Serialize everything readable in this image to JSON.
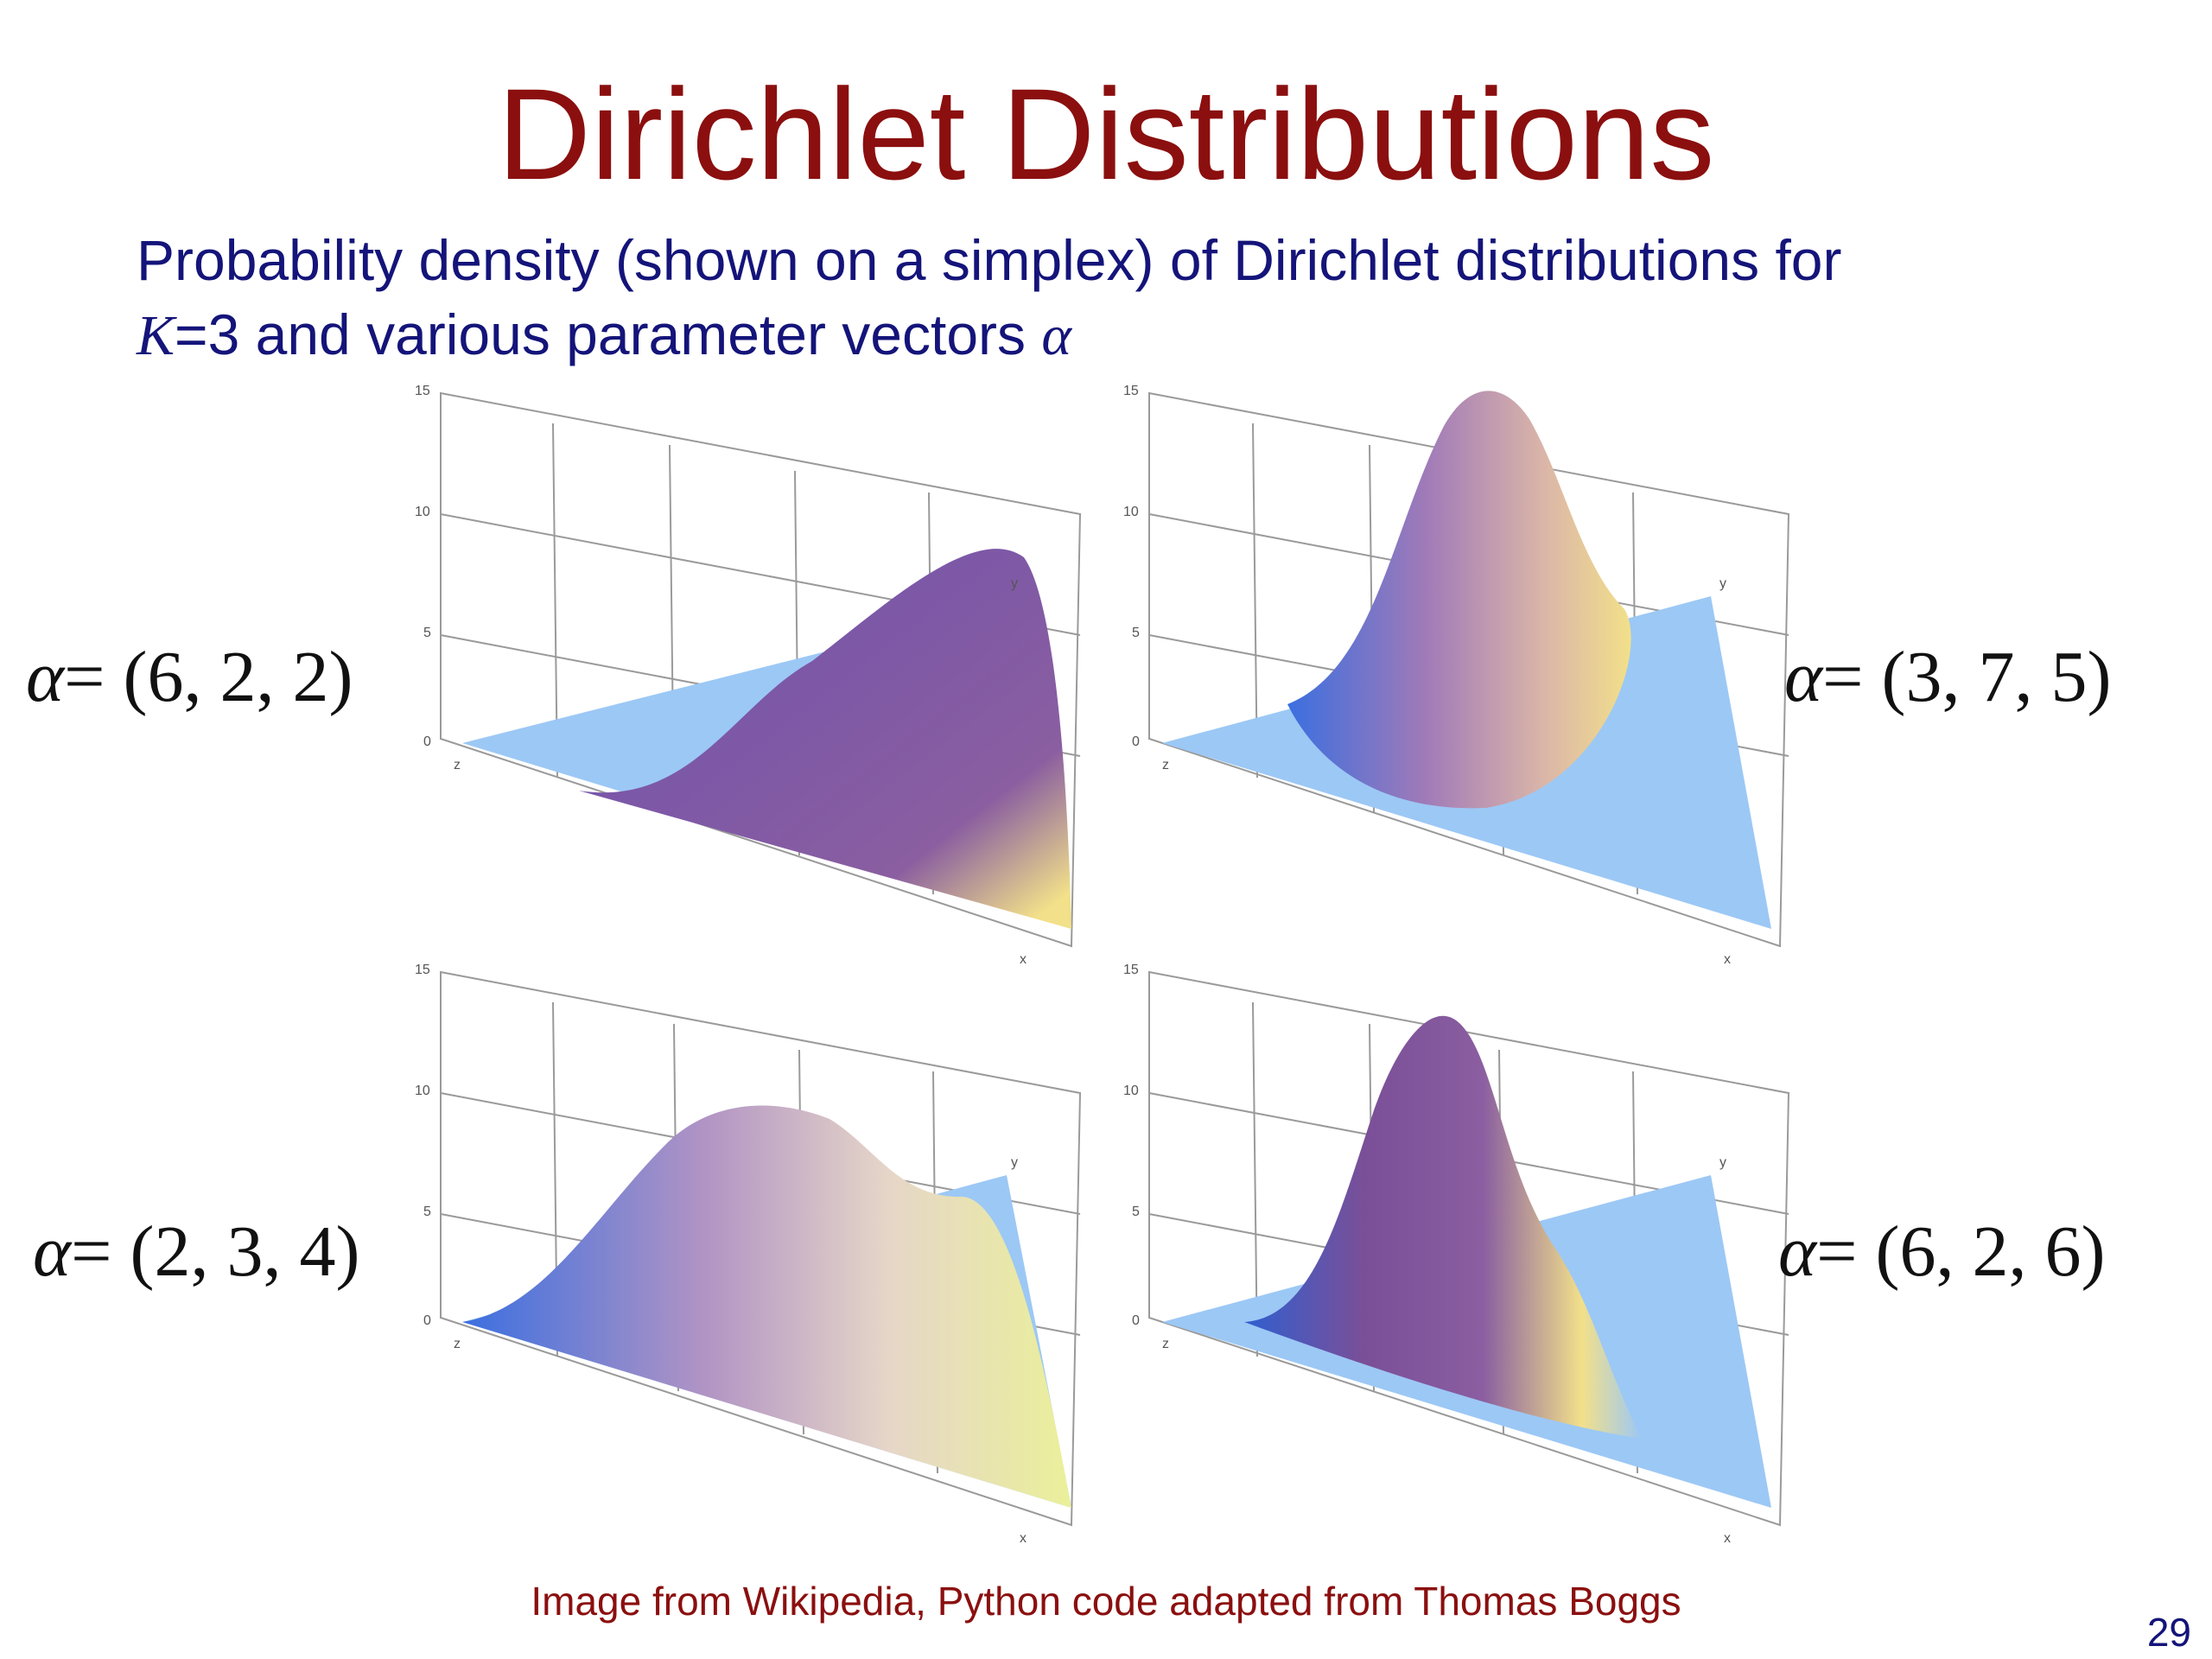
{
  "slide": {
    "title": "Dirichlet Distributions",
    "subtitle_line1": "Probability density (shown on a simplex) of Dirichlet distributions for",
    "subtitle_k": "K",
    "subtitle_line2_rest": "=3 and various parameter vectors ",
    "subtitle_alpha": "α",
    "credit": "Image from Wikipedia, Python code adapted from Thomas Boggs",
    "page_number": "29"
  },
  "plots": [
    {
      "alpha_symbol": "α",
      "alpha_value": "= (6, 2, 2)",
      "ticks": [
        "15",
        "10",
        "5",
        "0"
      ],
      "axis_x": "x",
      "axis_y": "y",
      "axis_z": "z"
    },
    {
      "alpha_symbol": "α",
      "alpha_value": "= (3, 7, 5)",
      "ticks": [
        "15",
        "10",
        "5",
        "0"
      ],
      "axis_x": "x",
      "axis_y": "y",
      "axis_z": "z"
    },
    {
      "alpha_symbol": "α",
      "alpha_value": "= (2, 3, 4)",
      "ticks": [
        "15",
        "10",
        "5",
        "0"
      ],
      "axis_x": "x",
      "axis_y": "y",
      "axis_z": "z"
    },
    {
      "alpha_symbol": "α",
      "alpha_value": "= (6, 2, 6)",
      "ticks": [
        "15",
        "10",
        "5",
        "0"
      ],
      "axis_x": "x",
      "axis_y": "y",
      "axis_z": "z"
    }
  ],
  "colors": {
    "title": "#8b0f0f",
    "subtitle": "#14147a",
    "simplex_fill": "#9cc8f5",
    "surface_mid": "#8a5ea0",
    "surface_edge": "#2f5fd0",
    "surface_highlight": "#f2e08a"
  }
}
